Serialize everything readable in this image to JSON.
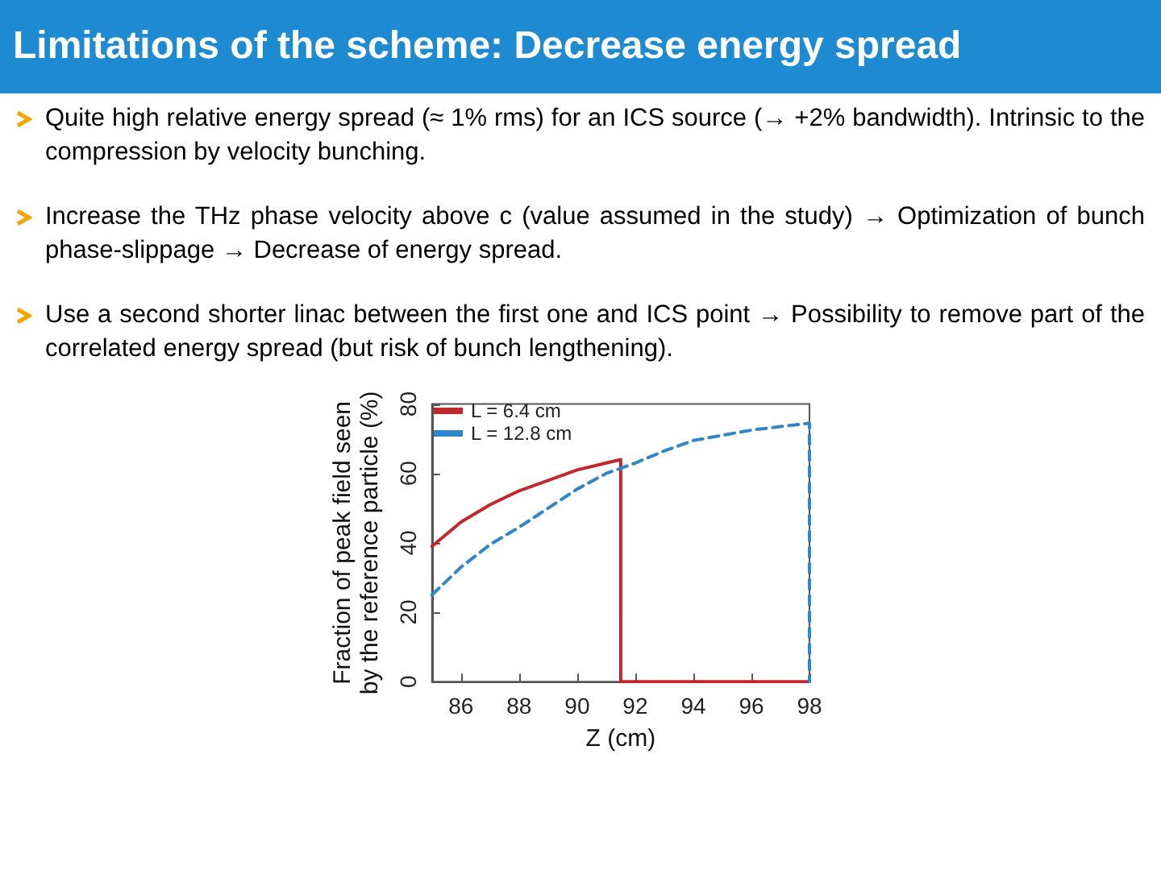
{
  "chart_data": {
    "type": "line",
    "title": "Limitations of the scheme: Decrease energy spread",
    "annotations": [
      "Quite high relative energy spread (≈ 1% rms) for an ICS source (→ +2% bandwidth). Intrinsic to the compression by velocity bunching.",
      "Increase the THz phase velocity above c (value assumed in the study) → Optimization of bunch phase-slippage → Decrease of energy spread.",
      "Use a second shorter linac between the first one and ICS point → Possibility to remove part of the correlated energy spread (but risk of bunch lengthening)."
    ],
    "xlabel": "Z (cm)",
    "ylabel": "Fraction of peak field seen\nby the reference particle (%)",
    "series": [
      {
        "name": "L = 6.4 cm",
        "color": "#c0282d",
        "line_style": "solid",
        "x": [
          85,
          86,
          87,
          88,
          89,
          90,
          91,
          91.5,
          91.5,
          98
        ],
        "values": [
          39,
          46,
          51,
          55,
          58,
          61,
          63,
          64,
          0,
          0
        ]
      },
      {
        "name": "L = 12.8 cm",
        "color": "#2f86c8",
        "line_style": "dashed",
        "x": [
          85,
          86,
          87,
          88,
          89,
          90,
          91,
          92,
          93,
          94,
          95,
          96,
          97,
          98,
          98
        ],
        "values": [
          25,
          33,
          39.5,
          44.5,
          50,
          55.5,
          60,
          63,
          66.5,
          69.5,
          71,
          72.5,
          73.5,
          74.5,
          0
        ]
      }
    ],
    "xlim": [
      85,
      98
    ],
    "xticks": [
      86,
      88,
      90,
      92,
      94,
      96,
      98
    ],
    "ylim": [
      0,
      80
    ],
    "yticks": [
      0,
      20,
      40,
      60,
      80
    ],
    "grid": false,
    "legend": "top left",
    "marker": "none"
  }
}
